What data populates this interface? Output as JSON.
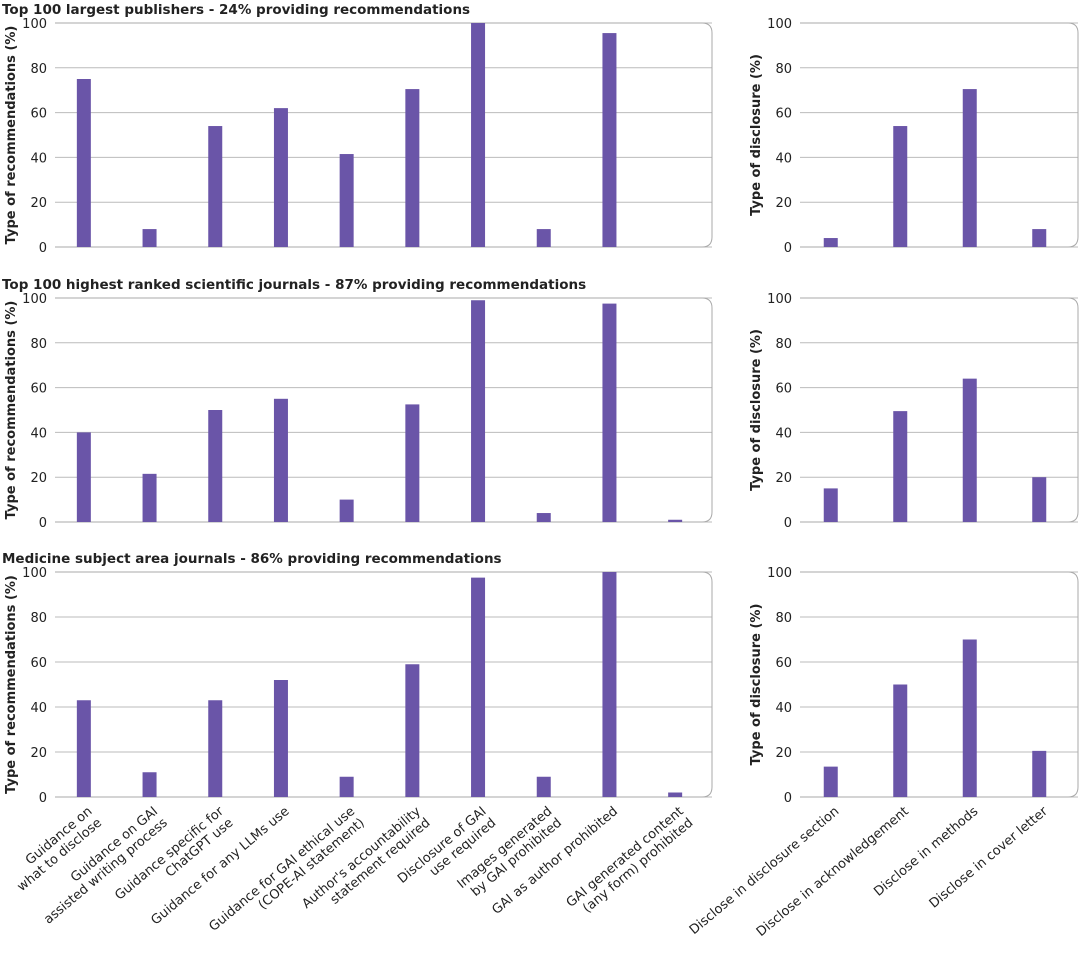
{
  "chart_data": [
    {
      "type": "bar",
      "title": "Top 100 largest publishers - 24% providing recommendations",
      "y_label": "Type of recommendations (%)",
      "values": [
        75,
        8,
        54,
        62,
        41.5,
        70.5,
        100,
        8,
        95.5,
        0
      ],
      "color": "#6a55a8",
      "ylim": [
        0,
        100
      ],
      "yticks": [
        0,
        20,
        40,
        60,
        80,
        100
      ],
      "grid": true
    },
    {
      "type": "bar",
      "y_label": "Type of disclosure (%)",
      "values": [
        4,
        54,
        70.5,
        8
      ],
      "color": "#6a55a8",
      "ylim": [
        0,
        100
      ],
      "yticks": [
        0,
        20,
        40,
        60,
        80,
        100
      ],
      "grid": true
    },
    {
      "type": "bar",
      "title": "Top 100 highest ranked scientific journals - 87% providing recommendations",
      "y_label": "Type of recommendations (%)",
      "values": [
        40,
        21.5,
        50,
        55,
        10,
        52.5,
        99,
        4,
        97.5,
        1
      ],
      "color": "#6a55a8",
      "ylim": [
        0,
        100
      ],
      "yticks": [
        0,
        20,
        40,
        60,
        80,
        100
      ],
      "grid": true
    },
    {
      "type": "bar",
      "y_label": "Type of disclosure (%)",
      "values": [
        15,
        49.5,
        64,
        20
      ],
      "color": "#6a55a8",
      "ylim": [
        0,
        100
      ],
      "yticks": [
        0,
        20,
        40,
        60,
        80,
        100
      ],
      "grid": true
    },
    {
      "type": "bar",
      "title": "Medicine subject area journals - 86% providing recommendations",
      "y_label": "Type of recommendations (%)",
      "categories": [
        "Guidance on\nwhat to disclose",
        "Guidance on GAI\nassisted writing process",
        "Guidance specific for\nChatGPT use",
        "Guidance for any LLMs use",
        "Guidance for GAI ethical use\n(COPE-AI statement)",
        "Author's accountability\nstatement required",
        "Disclosure of GAI\nuse required",
        "Images generated\nby GAI prohibited",
        "GAI as author prohibited",
        "GAI generated content\n(any form) prohibited"
      ],
      "values": [
        43,
        11,
        43,
        52,
        9,
        59,
        97.5,
        9,
        100,
        2
      ],
      "color": "#6a55a8",
      "ylim": [
        0,
        100
      ],
      "yticks": [
        0,
        20,
        40,
        60,
        80,
        100
      ],
      "grid": true
    },
    {
      "type": "bar",
      "y_label": "Type of disclosure (%)",
      "categories": [
        "Disclose in disclosure section",
        "Disclose in acknowledgement",
        "Disclose in methods",
        "Disclose in cover letter"
      ],
      "values": [
        13.5,
        50,
        70,
        20.5
      ],
      "color": "#6a55a8",
      "ylim": [
        0,
        100
      ],
      "yticks": [
        0,
        20,
        40,
        60,
        80,
        100
      ],
      "grid": true
    }
  ]
}
